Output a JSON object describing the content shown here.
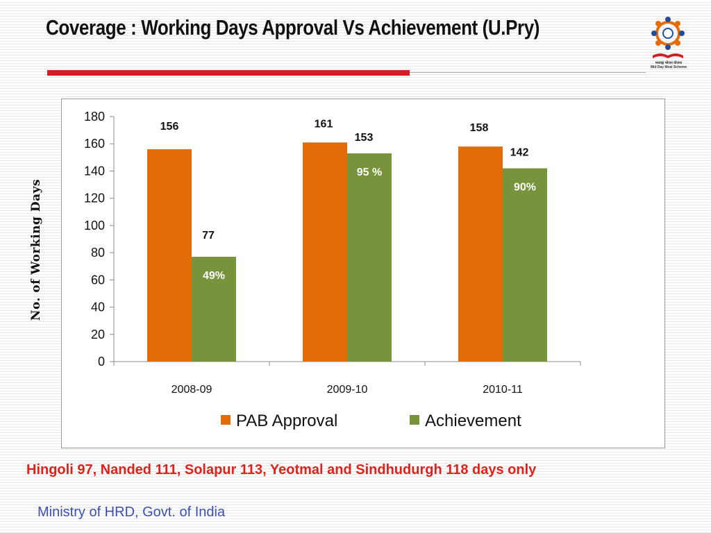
{
  "slide": {
    "title": "Coverage : Working Days Approval Vs Achievement (U.Pry)",
    "footnote": "Hingoli 97, Nanded 111, Solapur 113, Yeotmal and Sindhudurgh 118 days only",
    "footer": "Ministry of HRD, Govt. of India",
    "logo_caption_1": "मध्याह्न भोजन योजना",
    "logo_caption_2": "Mid Day Meal Scheme"
  },
  "chart_data": {
    "type": "bar",
    "title": "",
    "xlabel": "",
    "ylabel": "No. of Working Days",
    "ylim": [
      0,
      180
    ],
    "yticks": [
      0,
      20,
      40,
      60,
      80,
      100,
      120,
      140,
      160,
      180
    ],
    "categories": [
      "2008-09",
      "2009-10",
      "2010-11"
    ],
    "series": [
      {
        "name": "PAB Approval",
        "values": [
          156,
          161,
          158
        ],
        "color": "#e46c0a",
        "labels": [
          "156",
          "161",
          "158"
        ]
      },
      {
        "name": "Achievement",
        "values": [
          77,
          153,
          142
        ],
        "color": "#77933c",
        "labels": [
          "77",
          "153",
          "142"
        ],
        "inner_labels": [
          "49%",
          "95 %",
          "90%"
        ]
      }
    ],
    "grid": false,
    "legend_position": "bottom"
  }
}
